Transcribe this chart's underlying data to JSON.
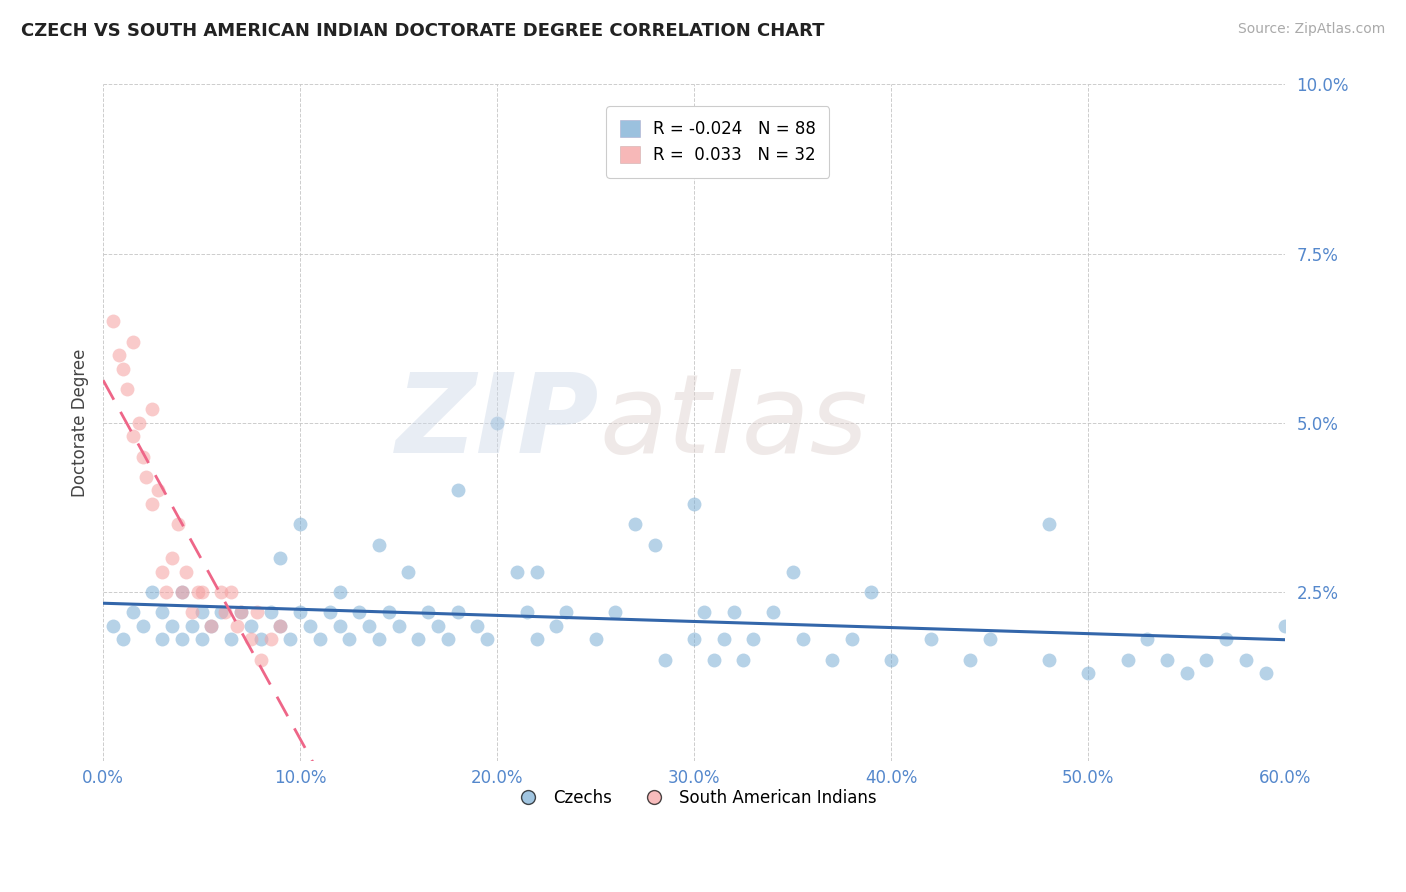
{
  "title": "CZECH VS SOUTH AMERICAN INDIAN DOCTORATE DEGREE CORRELATION CHART",
  "source": "Source: ZipAtlas.com",
  "ylabel": "Doctorate Degree",
  "xlabel": "",
  "xlim": [
    0.0,
    0.6
  ],
  "ylim": [
    0.0,
    0.1
  ],
  "xticks": [
    0.0,
    0.1,
    0.2,
    0.3,
    0.4,
    0.5,
    0.6
  ],
  "xticklabels": [
    "0.0%",
    "10.0%",
    "20.0%",
    "30.0%",
    "40.0%",
    "50.0%",
    "60.0%"
  ],
  "yticks": [
    0.025,
    0.05,
    0.075,
    0.1
  ],
  "yticklabels": [
    "2.5%",
    "5.0%",
    "7.5%",
    "10.0%"
  ],
  "background_color": "#ffffff",
  "grid_color": "#c8c8c8",
  "legend_R1": "-0.024",
  "legend_N1": "88",
  "legend_R2": "0.033",
  "legend_N2": "32",
  "czech_color": "#7aadd4",
  "south_color": "#f5a0a0",
  "czech_trend_color": "#3366aa",
  "south_trend_color": "#ee6688",
  "czech_x": [
    0.005,
    0.01,
    0.015,
    0.02,
    0.025,
    0.03,
    0.03,
    0.035,
    0.04,
    0.04,
    0.045,
    0.05,
    0.05,
    0.055,
    0.06,
    0.065,
    0.07,
    0.075,
    0.08,
    0.085,
    0.09,
    0.095,
    0.1,
    0.105,
    0.11,
    0.115,
    0.12,
    0.125,
    0.13,
    0.135,
    0.14,
    0.145,
    0.15,
    0.16,
    0.165,
    0.17,
    0.175,
    0.18,
    0.19,
    0.195,
    0.2,
    0.21,
    0.215,
    0.22,
    0.23,
    0.235,
    0.25,
    0.27,
    0.285,
    0.3,
    0.305,
    0.31,
    0.315,
    0.32,
    0.325,
    0.33,
    0.34,
    0.355,
    0.37,
    0.38,
    0.39,
    0.4,
    0.42,
    0.44,
    0.45,
    0.48,
    0.5,
    0.52,
    0.53,
    0.54,
    0.55,
    0.56,
    0.57,
    0.58,
    0.59,
    0.6,
    0.48,
    0.35,
    0.3,
    0.28,
    0.26,
    0.22,
    0.18,
    0.155,
    0.14,
    0.12,
    0.1,
    0.09
  ],
  "czech_y": [
    0.02,
    0.018,
    0.022,
    0.02,
    0.025,
    0.018,
    0.022,
    0.02,
    0.025,
    0.018,
    0.02,
    0.022,
    0.018,
    0.02,
    0.022,
    0.018,
    0.022,
    0.02,
    0.018,
    0.022,
    0.02,
    0.018,
    0.022,
    0.02,
    0.018,
    0.022,
    0.02,
    0.018,
    0.022,
    0.02,
    0.018,
    0.022,
    0.02,
    0.018,
    0.022,
    0.02,
    0.018,
    0.022,
    0.02,
    0.018,
    0.05,
    0.028,
    0.022,
    0.018,
    0.02,
    0.022,
    0.018,
    0.035,
    0.015,
    0.018,
    0.022,
    0.015,
    0.018,
    0.022,
    0.015,
    0.018,
    0.022,
    0.018,
    0.015,
    0.018,
    0.025,
    0.015,
    0.018,
    0.015,
    0.018,
    0.015,
    0.013,
    0.015,
    0.018,
    0.015,
    0.013,
    0.015,
    0.018,
    0.015,
    0.013,
    0.02,
    0.035,
    0.028,
    0.038,
    0.032,
    0.022,
    0.028,
    0.04,
    0.028,
    0.032,
    0.025,
    0.035,
    0.03
  ],
  "south_x": [
    0.005,
    0.008,
    0.01,
    0.012,
    0.015,
    0.015,
    0.018,
    0.02,
    0.022,
    0.025,
    0.025,
    0.028,
    0.03,
    0.032,
    0.035,
    0.038,
    0.04,
    0.042,
    0.045,
    0.048,
    0.05,
    0.055,
    0.06,
    0.062,
    0.065,
    0.068,
    0.07,
    0.075,
    0.078,
    0.08,
    0.085,
    0.09
  ],
  "south_y": [
    0.065,
    0.06,
    0.058,
    0.055,
    0.062,
    0.048,
    0.05,
    0.045,
    0.042,
    0.052,
    0.038,
    0.04,
    0.028,
    0.025,
    0.03,
    0.035,
    0.025,
    0.028,
    0.022,
    0.025,
    0.025,
    0.02,
    0.025,
    0.022,
    0.025,
    0.02,
    0.022,
    0.018,
    0.022,
    0.015,
    0.018,
    0.02
  ]
}
